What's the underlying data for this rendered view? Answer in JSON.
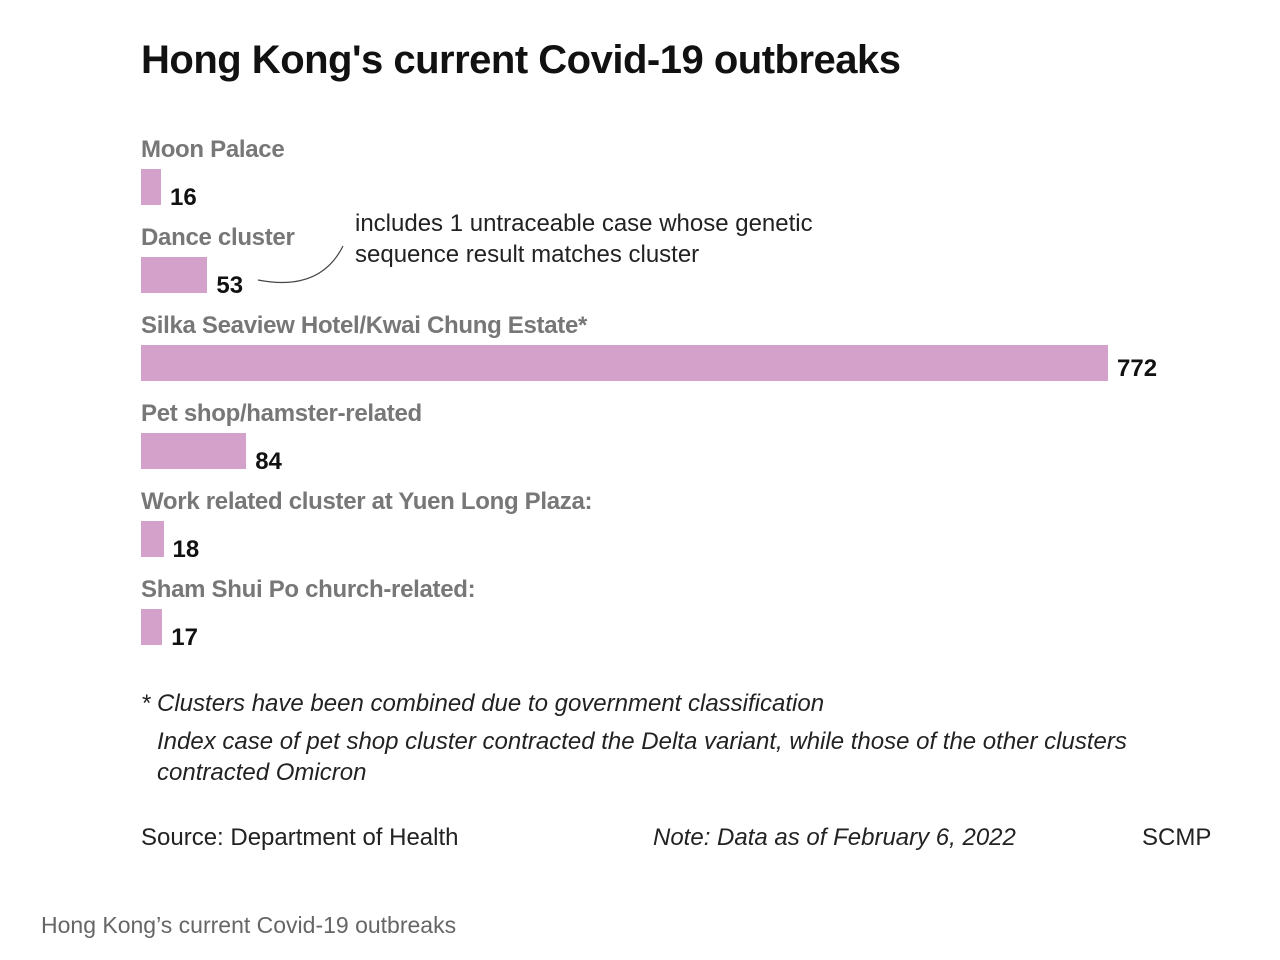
{
  "chart_data": {
    "type": "bar",
    "orientation": "horizontal",
    "title": "Hong Kong's current Covid-19 outbreaks",
    "categories": [
      "Moon Palace",
      "Dance cluster",
      "Silka Seaview Hotel/Kwai Chung Estate*",
      "Pet shop/hamster-related",
      "Work related cluster at Yuen Long Plaza:",
      "Sham Shui Po church-related:"
    ],
    "values": [
      16,
      53,
      772,
      84,
      18,
      17
    ],
    "bar_color": "#d4a1ca",
    "annotation": [
      "includes 1 untraceable case whose genetic",
      "sequence result matches cluster"
    ],
    "xlabel": "",
    "ylabel": "",
    "xlim": [
      0,
      772
    ]
  },
  "footnotes": {
    "combined": "* Clusters have been combined due to government classification",
    "variant_1": "Index case of pet shop cluster contracted the Delta variant, while those of the other clusters",
    "variant_2": "contracted Omicron"
  },
  "source": "Source: Department of Health",
  "note": "Note: Data as of February 6, 2022",
  "brand": "SCMP",
  "caption": "Hong Kong’s current Covid-19 outbreaks"
}
